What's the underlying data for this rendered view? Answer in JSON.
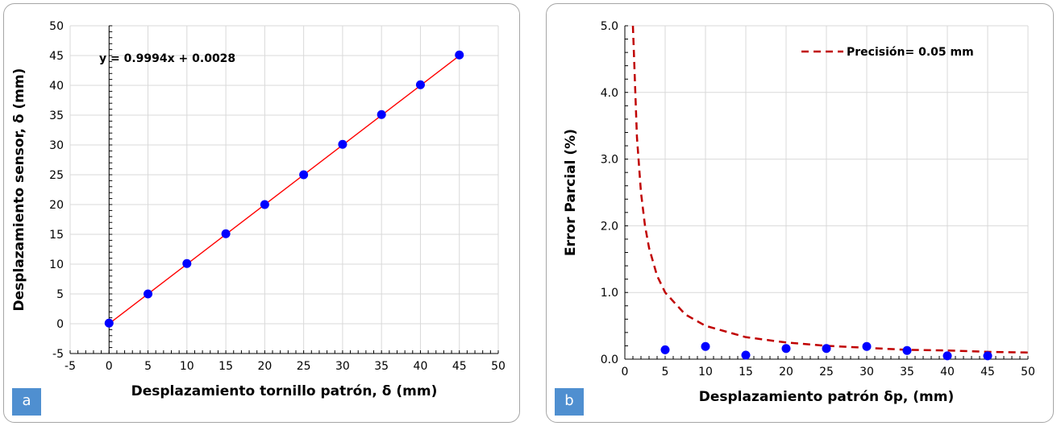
{
  "panels": [
    {
      "badge": "a",
      "chart_data": {
        "type": "scatter",
        "title": "",
        "xlabel": "Desplazamiento tornillo patrón, δ (mm)",
        "ylabel": "Desplazamiento sensor, δ (mm)",
        "xlim": [
          -5,
          50
        ],
        "ylim": [
          -5,
          50
        ],
        "xticks": [
          -5,
          0,
          5,
          10,
          15,
          20,
          25,
          30,
          35,
          40,
          45,
          50
        ],
        "yticks": [
          -5,
          0,
          5,
          10,
          15,
          20,
          25,
          30,
          35,
          40,
          45,
          50
        ],
        "grid": true,
        "series": [
          {
            "type": "scatter",
            "color": "#0000ff",
            "x": [
              0,
              5,
              10,
              15,
              20,
              25,
              30,
              35,
              40,
              45
            ],
            "y": [
              0.1,
              5.0,
              10.1,
              15.1,
              20.0,
              25.0,
              30.1,
              35.1,
              40.1,
              45.1
            ]
          },
          {
            "type": "line",
            "color": "#ff0000",
            "slope": 0.9994,
            "intercept": 0.0028,
            "x_range": [
              0,
              45
            ]
          }
        ],
        "annotations": [
          "y = 0.9994x + 0.0028"
        ]
      }
    },
    {
      "badge": "b",
      "chart_data": {
        "type": "scatter",
        "title": "",
        "xlabel": "Desplazamiento patrón δp,  (mm)",
        "ylabel": "Error Parcial (%)",
        "xlim": [
          0,
          50
        ],
        "ylim": [
          0,
          5
        ],
        "xticks": [
          0,
          5,
          10,
          15,
          20,
          25,
          30,
          35,
          40,
          45,
          50
        ],
        "yticks": [
          "0.0",
          "1.0",
          "2.0",
          "3.0",
          "4.0",
          "5.0"
        ],
        "grid": true,
        "legend": "top-right",
        "series": [
          {
            "type": "scatter",
            "color": "#0000ff",
            "x": [
              5,
              10,
              15,
              20,
              25,
              30,
              35,
              40,
              45
            ],
            "y": [
              0.14,
              0.19,
              0.06,
              0.16,
              0.16,
              0.19,
              0.13,
              0.05,
              0.05
            ]
          },
          {
            "type": "line",
            "name": "Precisión= 0.05 mm",
            "color": "#c00000",
            "dashed": true,
            "x": [
              1,
              1.5,
              2,
              2.5,
              3,
              4,
              5,
              7.5,
              10,
              15,
              20,
              25,
              30,
              35,
              40,
              45,
              50
            ],
            "y": [
              5.0,
              3.33,
              2.5,
              2.0,
              1.67,
              1.25,
              1.0,
              0.67,
              0.5,
              0.33,
              0.25,
              0.2,
              0.17,
              0.14,
              0.13,
              0.11,
              0.1
            ]
          }
        ]
      }
    }
  ]
}
